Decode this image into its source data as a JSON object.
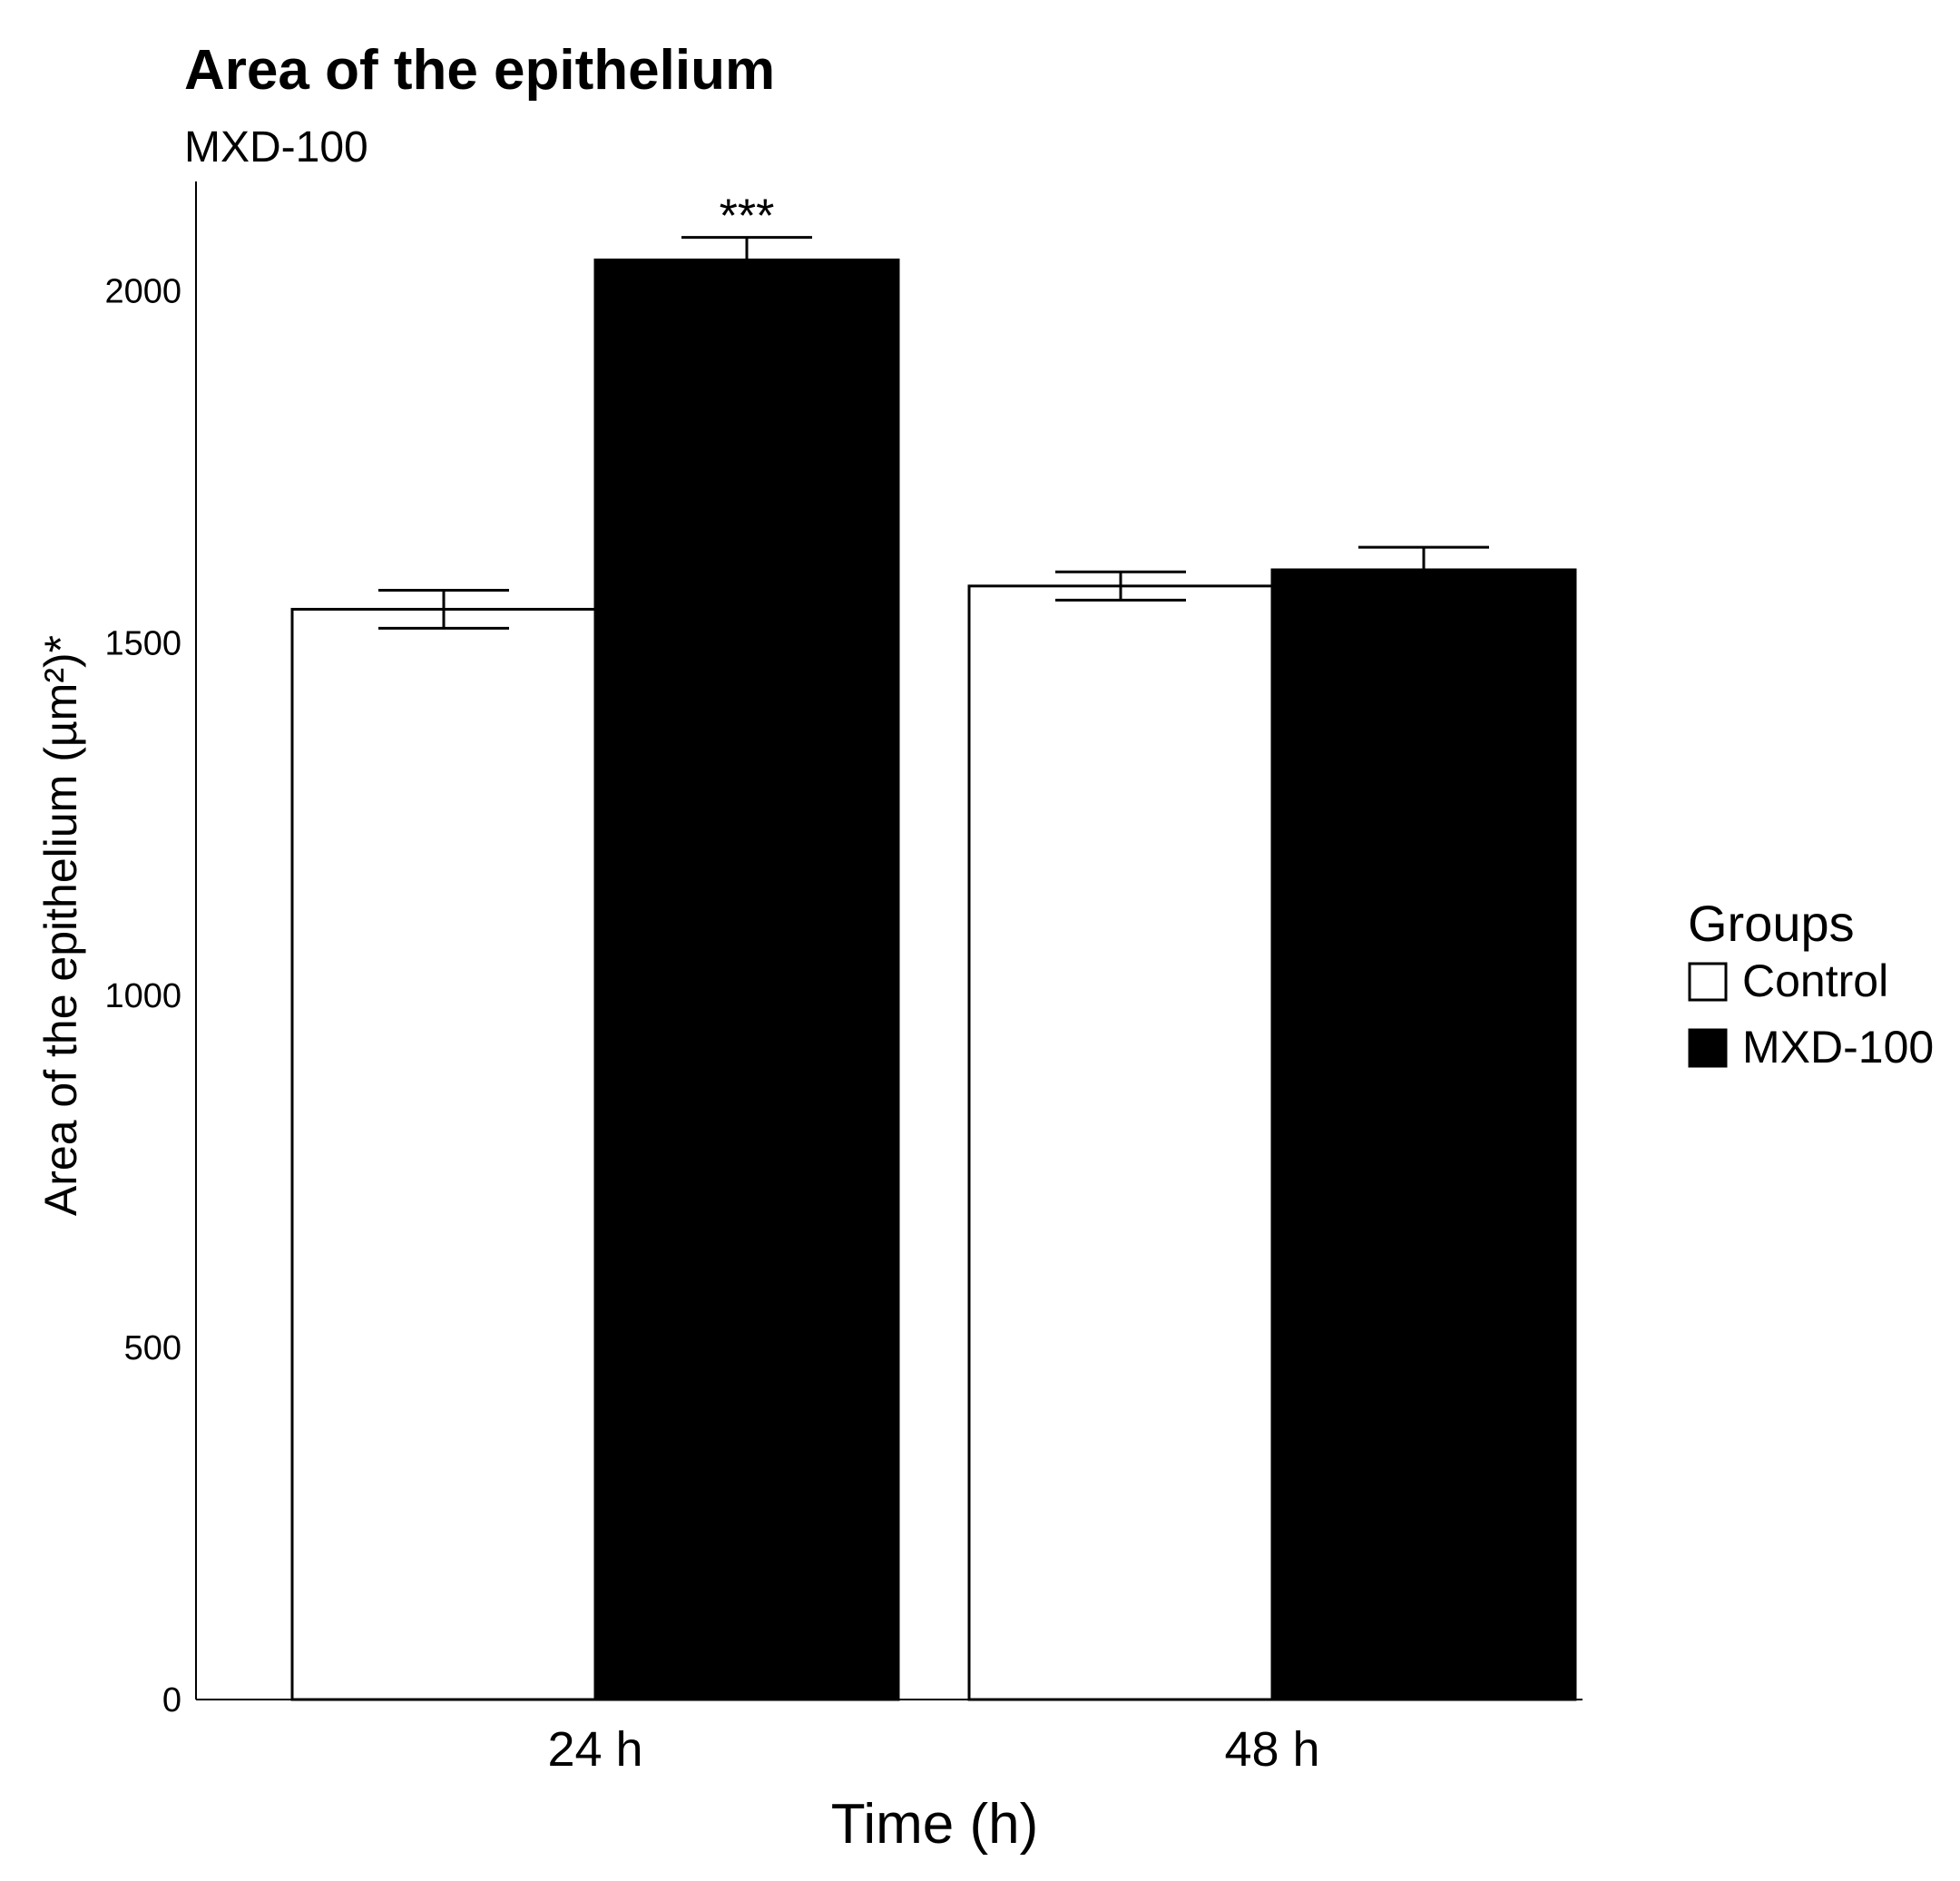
{
  "chart_data": {
    "type": "bar",
    "title": "Area of the epithelium",
    "subtitle": "MXD-100",
    "xlabel": "Time (h)",
    "ylabel": "Area of the epithelium (µm²)*",
    "categories": [
      "24 h",
      "48 h"
    ],
    "yticks": [
      "0",
      "500",
      "1000",
      "1500",
      "2000"
    ],
    "ylim": [
      0,
      2150
    ],
    "grid": false,
    "legend": {
      "title": "Groups",
      "placement": "right"
    },
    "series": [
      {
        "name": "Control",
        "color": "#ffffff",
        "values": [
          1548,
          1581
        ],
        "errors": [
          27,
          20
        ]
      },
      {
        "name": "MXD-100",
        "color": "#000000",
        "values": [
          2044,
          1604
        ],
        "errors": [
          32,
          32
        ]
      }
    ],
    "annotations": [
      {
        "text": "***",
        "category": "24 h",
        "series": "MXD-100"
      }
    ]
  }
}
